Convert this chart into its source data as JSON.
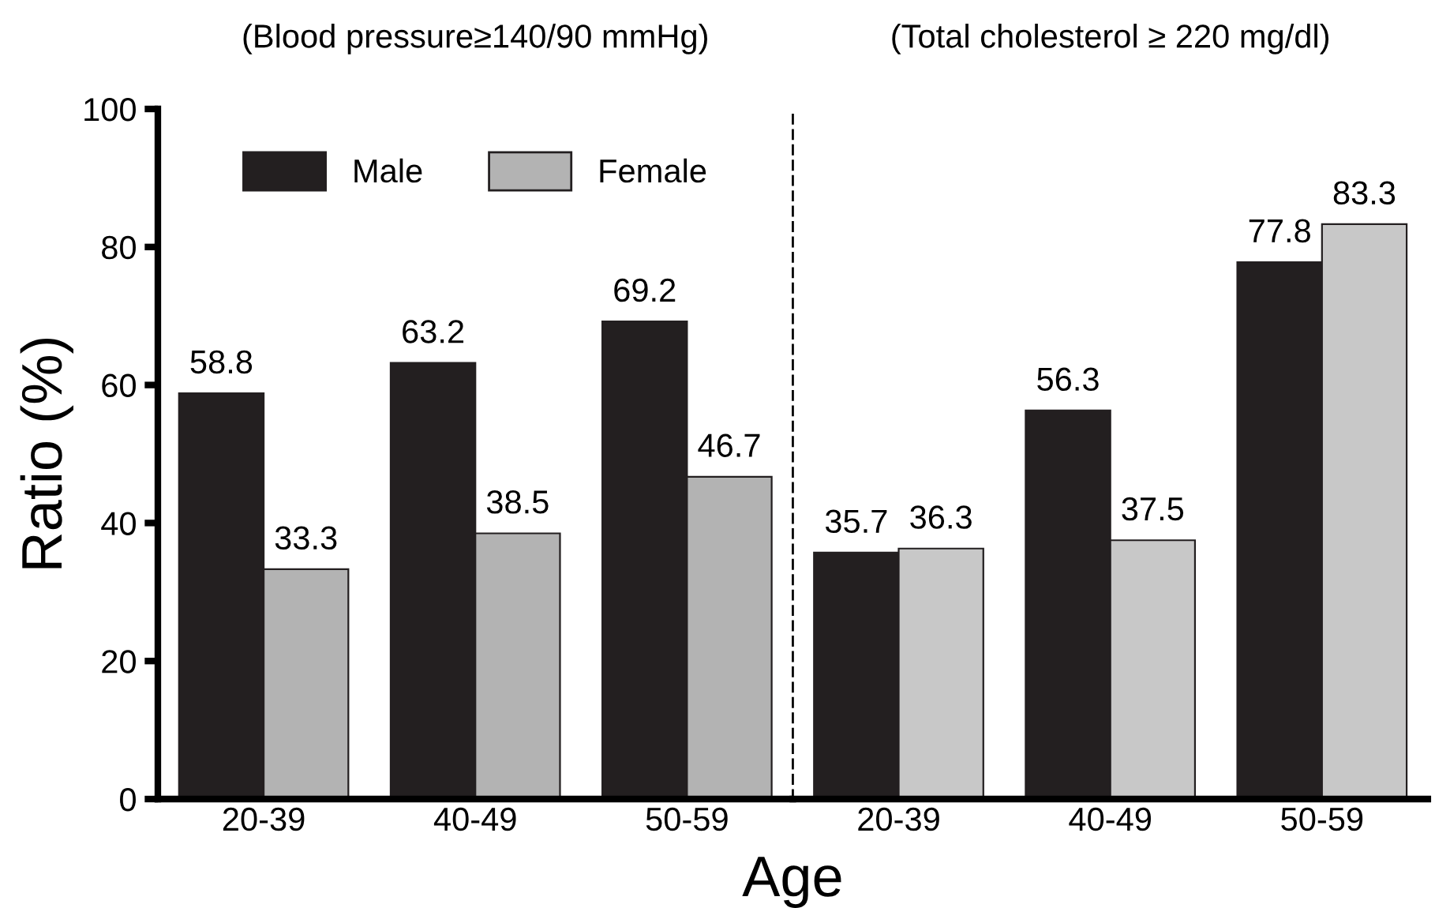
{
  "chart_data": [
    {
      "type": "bar",
      "title": "(Blood pressure≥140/90 mmHg)",
      "xlabel": "Age",
      "ylabel": "Ratio (%)",
      "categories": [
        "20-39",
        "40-49",
        "50-59"
      ],
      "series": [
        {
          "name": "Male",
          "color": "#231f20",
          "values": [
            58.8,
            63.2,
            69.2
          ]
        },
        {
          "name": "Female",
          "color": "#b3b3b3",
          "values": [
            33.3,
            38.5,
            46.7
          ]
        }
      ],
      "ylim": [
        0,
        100
      ],
      "yticks": [
        0,
        20,
        40,
        60,
        80,
        100
      ],
      "legend": "top",
      "data_labels": true,
      "grid": false
    },
    {
      "type": "bar",
      "title": "(Total cholesterol ≥ 220 mg/dl)",
      "categories": [
        "20-39",
        "40-49",
        "50-59"
      ],
      "series": [
        {
          "color": "#231f20",
          "values": [
            35.7,
            56.3,
            77.8
          ]
        },
        {
          "color": "#c8c8c8",
          "values": [
            36.3,
            37.5,
            83.3
          ]
        }
      ],
      "ylim": [
        0,
        100
      ],
      "tick_labels": "x",
      "data_labels": true,
      "grid": false
    }
  ]
}
